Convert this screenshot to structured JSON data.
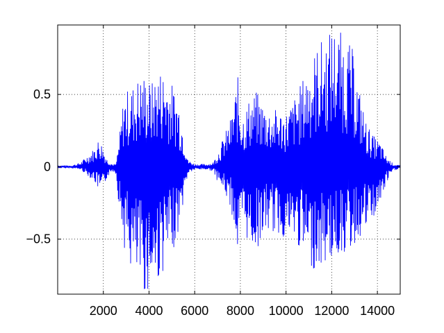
{
  "chart_data": {
    "type": "line",
    "title": "",
    "xlabel": "",
    "ylabel": "",
    "xlim": [
      0,
      15000
    ],
    "ylim": [
      -0.88,
      0.98
    ],
    "grid": true,
    "line_color": "#0000ff",
    "x_ticks": [
      2000,
      4000,
      6000,
      8000,
      10000,
      12000,
      14000
    ],
    "x_tick_labels": [
      "2000",
      "4000",
      "6000",
      "8000",
      "10000",
      "12000",
      "14000"
    ],
    "y_ticks": [
      -0.5,
      0,
      0.5
    ],
    "y_tick_labels": [
      "−0.5",
      "0",
      "0.5"
    ],
    "envelope": {
      "x": [
        0,
        600,
        1000,
        1300,
        1600,
        1800,
        1950,
        2150,
        2400,
        2550,
        2700,
        2900,
        3200,
        3500,
        3800,
        4100,
        4400,
        4700,
        5000,
        5300,
        5550,
        5700,
        6000,
        6500,
        6800,
        7000,
        7300,
        7600,
        7800,
        7900,
        8000,
        8150,
        8400,
        8700,
        9000,
        9300,
        9600,
        10000,
        10500,
        11000,
        11500,
        11800,
        12000,
        12300,
        12600,
        12900,
        13200,
        13500,
        13800,
        14100,
        14400,
        14700,
        15000
      ],
      "upper": [
        0.01,
        0.01,
        0.03,
        0.08,
        0.13,
        0.2,
        0.16,
        0.06,
        0.02,
        0.02,
        0.2,
        0.52,
        0.55,
        0.62,
        0.65,
        0.58,
        0.68,
        0.68,
        0.58,
        0.48,
        0.22,
        0.05,
        0.02,
        0.02,
        0.03,
        0.1,
        0.22,
        0.35,
        0.55,
        0.63,
        0.43,
        0.38,
        0.48,
        0.52,
        0.45,
        0.4,
        0.4,
        0.38,
        0.52,
        0.72,
        0.88,
        0.9,
        0.98,
        0.95,
        0.9,
        0.82,
        0.55,
        0.32,
        0.22,
        0.18,
        0.07,
        0.02,
        0.01
      ],
      "lower": [
        -0.01,
        -0.01,
        -0.02,
        -0.06,
        -0.1,
        -0.17,
        -0.2,
        -0.08,
        -0.03,
        -0.05,
        -0.3,
        -0.55,
        -0.72,
        -0.83,
        -0.88,
        -0.85,
        -0.8,
        -0.7,
        -0.6,
        -0.45,
        -0.2,
        -0.05,
        -0.02,
        -0.02,
        -0.03,
        -0.1,
        -0.18,
        -0.3,
        -0.5,
        -0.68,
        -0.48,
        -0.45,
        -0.55,
        -0.58,
        -0.48,
        -0.45,
        -0.48,
        -0.5,
        -0.55,
        -0.7,
        -0.72,
        -0.66,
        -0.65,
        -0.62,
        -0.6,
        -0.58,
        -0.5,
        -0.45,
        -0.38,
        -0.28,
        -0.12,
        -0.03,
        -0.01
      ]
    }
  }
}
